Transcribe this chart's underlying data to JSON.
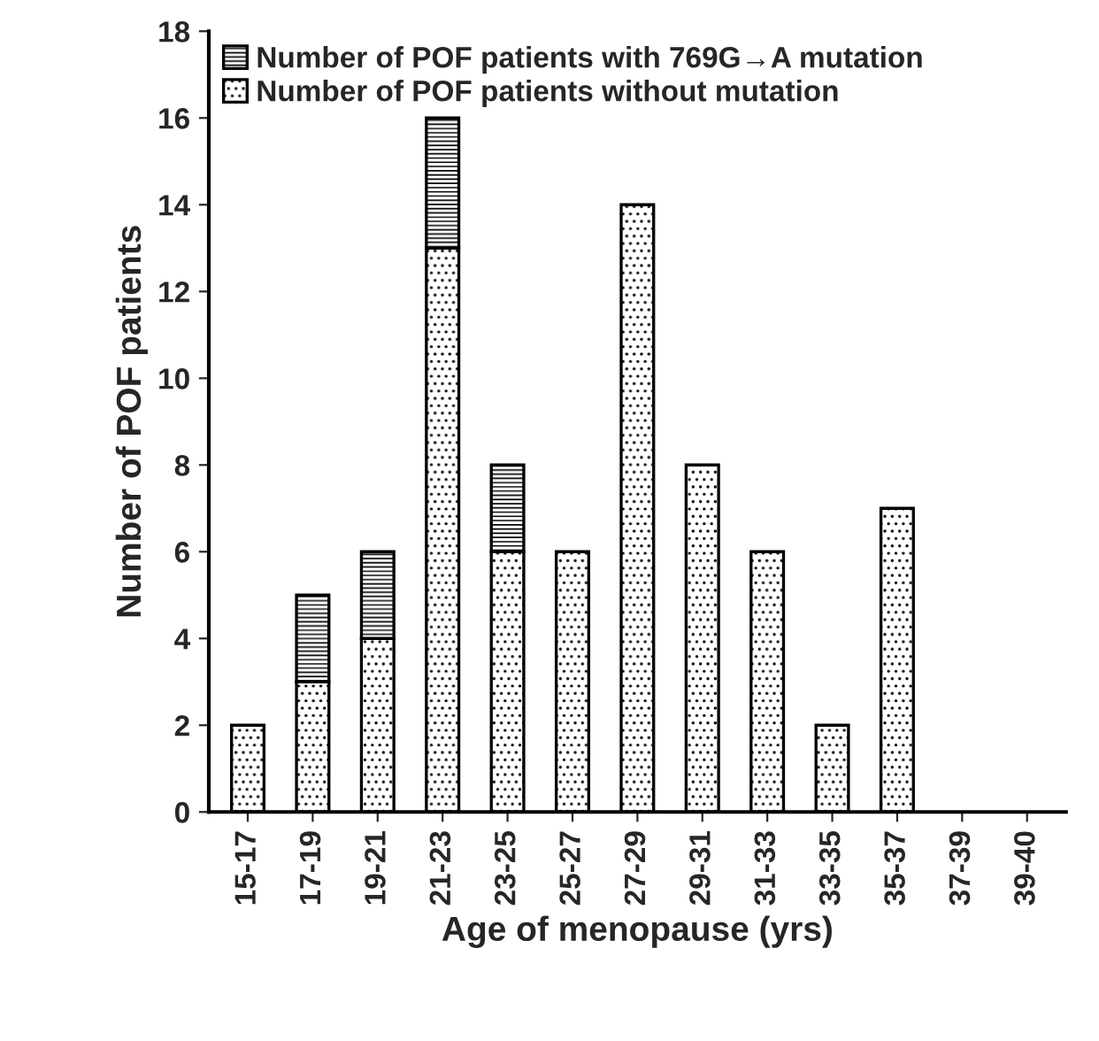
{
  "chart_data": {
    "type": "bar",
    "stacked": true,
    "xlabel": "Age of menopause (yrs)",
    "ylabel": "Number of POF patients",
    "categories": [
      "15-17",
      "17-19",
      "19-21",
      "21-23",
      "23-25",
      "25-27",
      "27-29",
      "29-31",
      "31-33",
      "33-35",
      "35-37",
      "37-39",
      "39-40"
    ],
    "series": [
      {
        "name": "Number of POF patients without mutation",
        "color": "#000000",
        "values": [
          2,
          3,
          4,
          13,
          6,
          6,
          14,
          8,
          6,
          2,
          7,
          0,
          0
        ]
      },
      {
        "name": "Number of POF patients with 769G→A mutation",
        "color": "#000000",
        "values": [
          null,
          2,
          2,
          3,
          2,
          null,
          null,
          null,
          null,
          null,
          null,
          null,
          null
        ]
      }
    ],
    "ylim": [
      0,
      18
    ],
    "yticks": [
      0,
      2,
      4,
      6,
      8,
      10,
      12,
      14,
      16,
      18
    ],
    "grid": false,
    "legend": "top left"
  }
}
